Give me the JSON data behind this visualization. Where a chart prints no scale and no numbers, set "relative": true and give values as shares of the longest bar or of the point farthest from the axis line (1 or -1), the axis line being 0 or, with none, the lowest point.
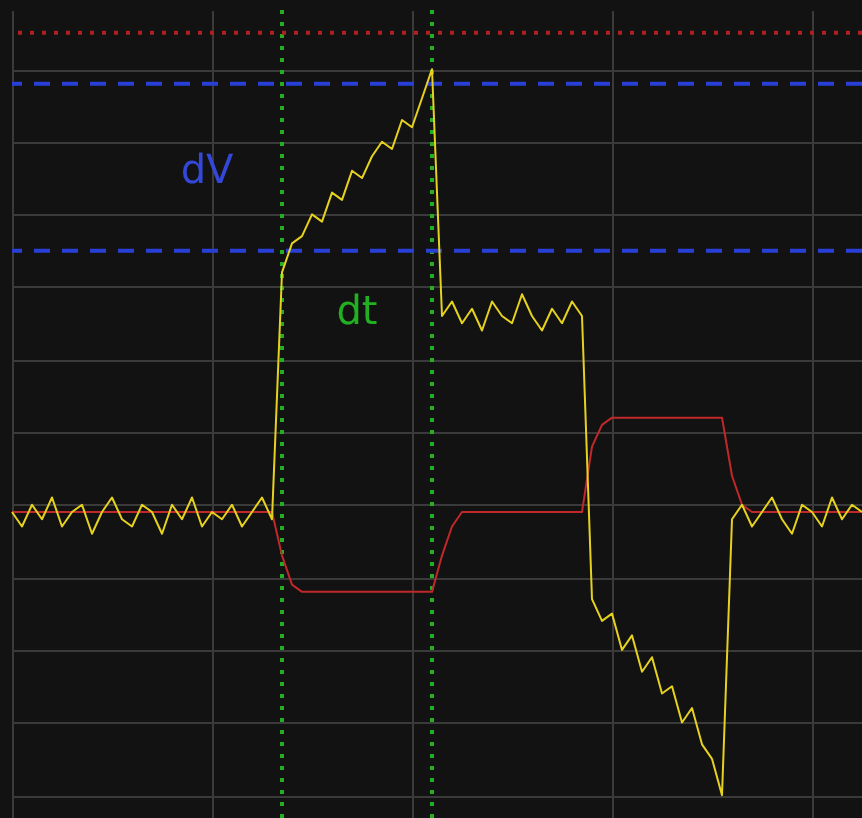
{
  "chart_data": {
    "type": "line",
    "relative": true,
    "grid": true,
    "categories": [
      null,
      null,
      null,
      null,
      null,
      null,
      null,
      null,
      null,
      null,
      null,
      null,
      null,
      null,
      null,
      null,
      null,
      null,
      null,
      null,
      null,
      null,
      null,
      null,
      null,
      null,
      null,
      null,
      null,
      null,
      null,
      null,
      null,
      null,
      null,
      null,
      null,
      null,
      null,
      null,
      null,
      null,
      null,
      null,
      null,
      null,
      null,
      null,
      null,
      null,
      null,
      null,
      null,
      null,
      null,
      null,
      null,
      null,
      null,
      null,
      null,
      null,
      null,
      null,
      null,
      null,
      null,
      null,
      null,
      null,
      null,
      null,
      null,
      null,
      null,
      null,
      null,
      null,
      null,
      null,
      null,
      null,
      null,
      null,
      null,
      null
    ],
    "series": [
      {
        "color": "#c0282a",
        "values": [
          0.39,
          0.39,
          0.39,
          0.39,
          0.39,
          0.39,
          0.39,
          0.39,
          0.39,
          0.39,
          0.39,
          0.39,
          0.39,
          0.39,
          0.39,
          0.39,
          0.39,
          0.39,
          0.39,
          0.39,
          0.39,
          0.39,
          0.39,
          0.39,
          0.39,
          0.39,
          0.39,
          0.33,
          0.29,
          0.28,
          0.28,
          0.28,
          0.28,
          0.28,
          0.28,
          0.28,
          0.28,
          0.28,
          0.28,
          0.28,
          0.28,
          0.28,
          0.28,
          0.33,
          0.37,
          0.39,
          0.39,
          0.39,
          0.39,
          0.39,
          0.39,
          0.39,
          0.39,
          0.39,
          0.39,
          0.39,
          0.39,
          0.39,
          0.48,
          0.51,
          0.52,
          0.52,
          0.52,
          0.52,
          0.52,
          0.52,
          0.52,
          0.52,
          0.52,
          0.52,
          0.52,
          0.52,
          0.44,
          0.4,
          0.39,
          0.39,
          0.39,
          0.39,
          0.39,
          0.39,
          0.39,
          0.39,
          0.39,
          0.39,
          0.39,
          0.39
        ]
      },
      {
        "color": "#e6d21e",
        "values": [
          0.39,
          0.37,
          0.4,
          0.38,
          0.41,
          0.37,
          0.39,
          0.4,
          0.36,
          0.39,
          0.41,
          0.38,
          0.37,
          0.4,
          0.39,
          0.36,
          0.4,
          0.38,
          0.41,
          0.37,
          0.39,
          0.38,
          0.4,
          0.37,
          0.39,
          0.41,
          0.38,
          0.72,
          0.76,
          0.77,
          0.8,
          0.79,
          0.83,
          0.82,
          0.86,
          0.85,
          0.88,
          0.9,
          0.89,
          0.93,
          0.92,
          0.96,
          1,
          0.66,
          0.68,
          0.65,
          0.67,
          0.64,
          0.68,
          0.66,
          0.65,
          0.69,
          0.66,
          0.64,
          0.67,
          0.65,
          0.68,
          0.66,
          0.27,
          0.24,
          0.25,
          0.2,
          0.22,
          0.17,
          0.19,
          0.14,
          0.15,
          0.1,
          0.12,
          0.07,
          0.05,
          0,
          0.38,
          0.4,
          0.37,
          0.39,
          0.41,
          0.38,
          0.36,
          0.4,
          0.39,
          0.37,
          0.41,
          0.38,
          0.4,
          0.39
        ]
      }
    ],
    "ref_lines": [
      {
        "axis": "y",
        "value": 1.05,
        "color": "#b02020",
        "line_style": "dotted"
      },
      {
        "axis": "y",
        "value": 0.98,
        "color": "#2a3fd6",
        "line_style": "dashed"
      },
      {
        "axis": "y",
        "value": 0.75,
        "color": "#2a3fd6",
        "line_style": "dashed"
      }
    ],
    "annotations": [
      "dV",
      "dt"
    ]
  }
}
